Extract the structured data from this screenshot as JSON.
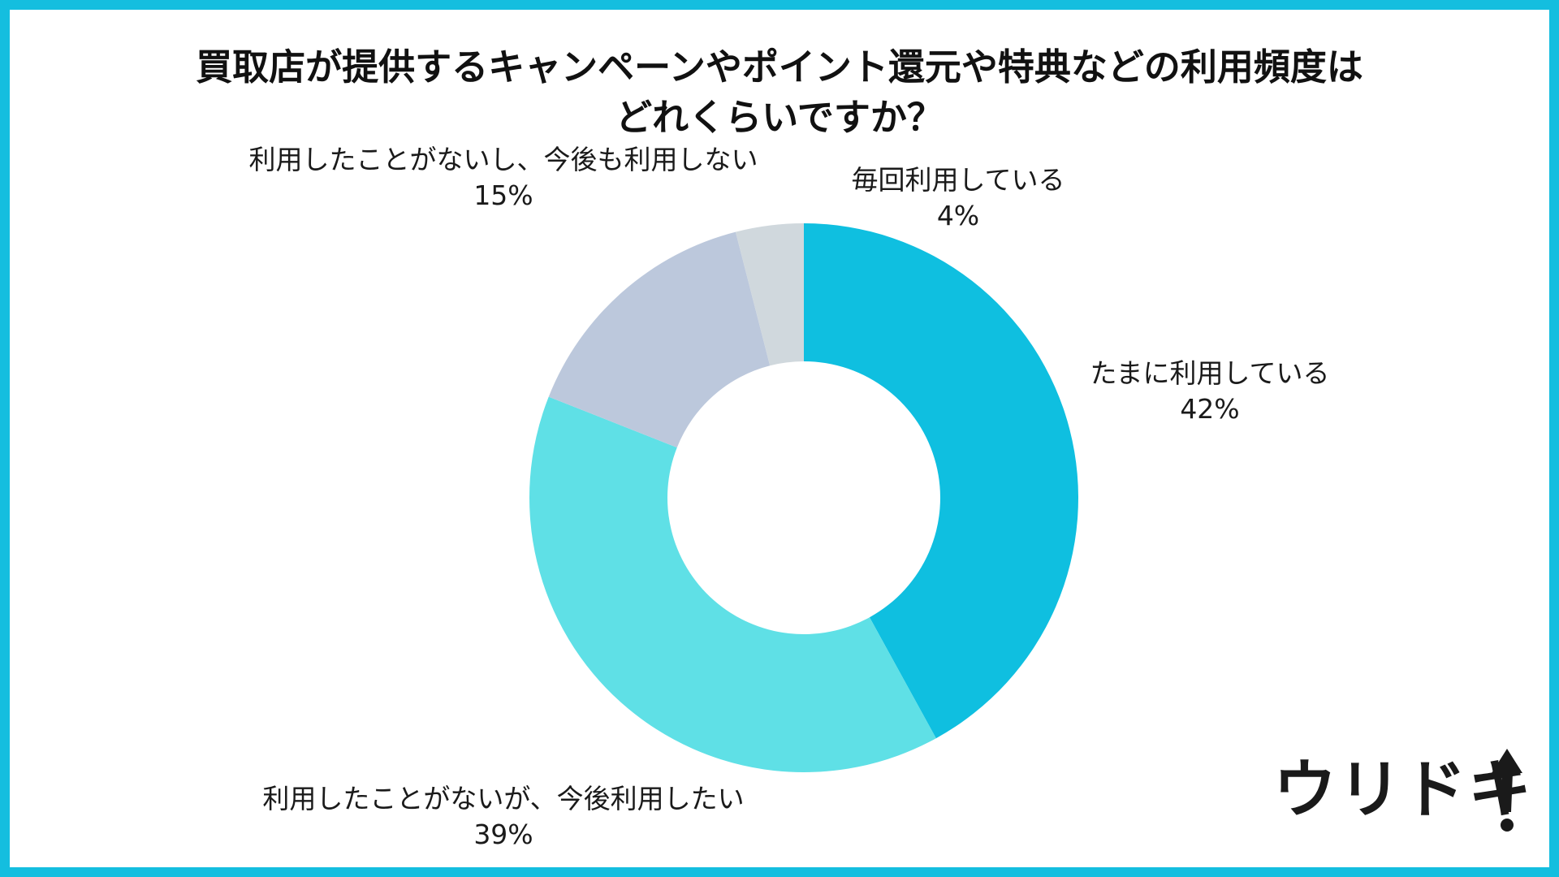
{
  "title": {
    "line1": "買取店が提供するキャンペーンやポイント還元や特典などの利用頻度は",
    "line2": "どれくらいですか？"
  },
  "chart_data": {
    "type": "pie",
    "donut": true,
    "start": "top",
    "direction": "clockwise",
    "slices": [
      {
        "label": "たまに利用している",
        "value": 42,
        "value_label": "42%",
        "color": "#0fbfe0"
      },
      {
        "label": "利用したことがないが、今後利用したい",
        "value": 39,
        "value_label": "39%",
        "color": "#5fe0e6"
      },
      {
        "label": "利用したことがないし、今後も利用しない",
        "value": 15,
        "value_label": "15%",
        "color": "#bcc8dc"
      },
      {
        "label": "毎回利用している",
        "value": 4,
        "value_label": "4%",
        "color": "#d0d8dd"
      }
    ]
  },
  "logo": {
    "text": "ウリドキ",
    "icon": "up-arrow-exclamation-icon"
  },
  "colors": {
    "frame": "#14bedf",
    "text": "#111111"
  }
}
